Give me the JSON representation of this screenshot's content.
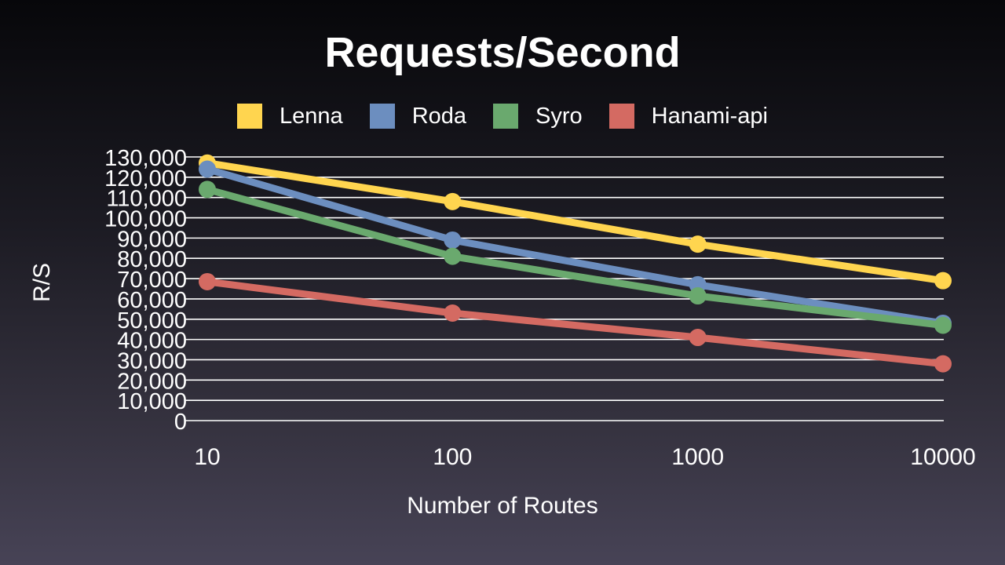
{
  "chart_data": {
    "type": "line",
    "title": "Requests/Second",
    "xlabel": "Number of Routes",
    "ylabel": "R/S",
    "x_scale": "log",
    "categories": [
      "10",
      "100",
      "1000",
      "10000"
    ],
    "x": [
      10,
      100,
      1000,
      10000
    ],
    "ylim": [
      0,
      130000
    ],
    "y_ticks": [
      0,
      10000,
      20000,
      30000,
      40000,
      50000,
      60000,
      70000,
      80000,
      90000,
      100000,
      110000,
      120000,
      130000
    ],
    "y_tick_labels": [
      "0",
      "10,000",
      "20,000",
      "30,000",
      "40,000",
      "50,000",
      "60,000",
      "70,000",
      "80,000",
      "90,000",
      "100,000",
      "110,000",
      "120,000",
      "130,000"
    ],
    "grid": true,
    "legend_position": "top",
    "series": [
      {
        "name": "Lenna",
        "color": "#ffd54f",
        "values": [
          127000,
          108000,
          87000,
          69000
        ]
      },
      {
        "name": "Roda",
        "color": "#6c8ebf",
        "values": [
          124000,
          89000,
          67000,
          48000
        ]
      },
      {
        "name": "Syro",
        "color": "#6aa96e",
        "values": [
          114000,
          81000,
          61500,
          47000
        ]
      },
      {
        "name": "Hanami-api",
        "color": "#d46a62",
        "values": [
          68500,
          53000,
          41000,
          28000
        ]
      }
    ]
  }
}
